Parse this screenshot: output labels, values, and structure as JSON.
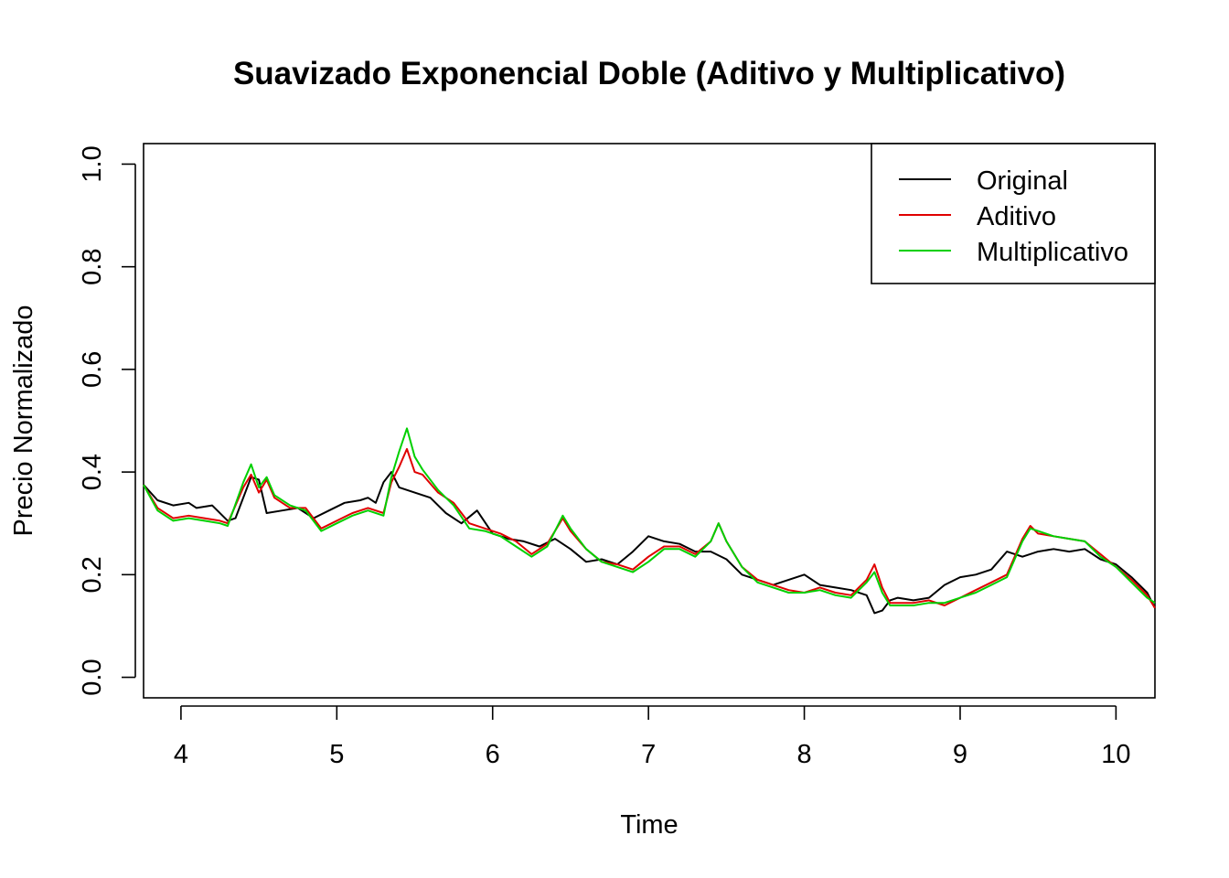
{
  "chart_data": {
    "type": "line",
    "title": "Suavizado Exponencial Doble (Aditivo y Multiplicativo)",
    "xlabel": "Time",
    "ylabel": "Precio Normalizado",
    "xlim": [
      3.76,
      10.25
    ],
    "ylim": [
      -0.04,
      1.04
    ],
    "x_ticks": [
      "4",
      "5",
      "6",
      "7",
      "8",
      "9",
      "10"
    ],
    "y_ticks": [
      "0.0",
      "0.2",
      "0.4",
      "0.6",
      "0.8",
      "1.0"
    ],
    "grid": false,
    "legend": {
      "position": "top-right",
      "entries": [
        "Original",
        "Aditivo",
        "Multiplicativo"
      ]
    },
    "colors": {
      "Original": "#000000",
      "Aditivo": "#e00000",
      "Multiplicativo": "#00d000"
    },
    "series": [
      {
        "name": "Original",
        "color": "#000000",
        "x": [
          3.76,
          3.85,
          3.95,
          4.05,
          4.1,
          4.2,
          4.3,
          4.35,
          4.45,
          4.5,
          4.55,
          4.65,
          4.75,
          4.85,
          4.95,
          5.05,
          5.15,
          5.2,
          5.25,
          5.3,
          5.35,
          5.4,
          5.5,
          5.6,
          5.7,
          5.8,
          5.9,
          6.0,
          6.1,
          6.2,
          6.3,
          6.4,
          6.5,
          6.6,
          6.7,
          6.8,
          6.9,
          7.0,
          7.1,
          7.2,
          7.3,
          7.4,
          7.5,
          7.6,
          7.7,
          7.8,
          7.9,
          8.0,
          8.1,
          8.2,
          8.3,
          8.4,
          8.45,
          8.5,
          8.55,
          8.6,
          8.7,
          8.8,
          8.9,
          9.0,
          9.1,
          9.2,
          9.3,
          9.4,
          9.5,
          9.6,
          9.7,
          9.8,
          9.9,
          10.0,
          10.1,
          10.2,
          10.25
        ],
        "y": [
          0.375,
          0.345,
          0.335,
          0.34,
          0.33,
          0.335,
          0.305,
          0.31,
          0.39,
          0.385,
          0.32,
          0.325,
          0.33,
          0.31,
          0.325,
          0.34,
          0.345,
          0.35,
          0.34,
          0.38,
          0.4,
          0.37,
          0.36,
          0.35,
          0.32,
          0.3,
          0.325,
          0.28,
          0.27,
          0.265,
          0.255,
          0.27,
          0.25,
          0.225,
          0.23,
          0.22,
          0.245,
          0.275,
          0.265,
          0.26,
          0.245,
          0.245,
          0.23,
          0.2,
          0.19,
          0.18,
          0.19,
          0.2,
          0.18,
          0.175,
          0.17,
          0.16,
          0.125,
          0.13,
          0.15,
          0.155,
          0.15,
          0.155,
          0.18,
          0.195,
          0.2,
          0.21,
          0.245,
          0.235,
          0.245,
          0.25,
          0.245,
          0.25,
          0.23,
          0.22,
          0.195,
          0.165,
          0.135
        ]
      },
      {
        "name": "Aditivo",
        "color": "#e00000",
        "x": [
          3.76,
          3.85,
          3.95,
          4.05,
          4.15,
          4.25,
          4.3,
          4.4,
          4.45,
          4.5,
          4.55,
          4.6,
          4.7,
          4.8,
          4.9,
          5.0,
          5.1,
          5.2,
          5.3,
          5.35,
          5.4,
          5.45,
          5.5,
          5.55,
          5.65,
          5.75,
          5.85,
          5.95,
          6.05,
          6.15,
          6.25,
          6.35,
          6.45,
          6.5,
          6.6,
          6.7,
          6.8,
          6.9,
          7.0,
          7.1,
          7.2,
          7.3,
          7.4,
          7.45,
          7.5,
          7.6,
          7.7,
          7.8,
          7.9,
          8.0,
          8.1,
          8.2,
          8.3,
          8.4,
          8.45,
          8.5,
          8.55,
          8.6,
          8.7,
          8.8,
          8.9,
          9.0,
          9.1,
          9.2,
          9.3,
          9.4,
          9.45,
          9.5,
          9.6,
          9.7,
          9.8,
          9.9,
          10.0,
          10.1,
          10.2,
          10.25
        ],
        "y": [
          0.375,
          0.33,
          0.31,
          0.315,
          0.31,
          0.305,
          0.3,
          0.37,
          0.395,
          0.36,
          0.385,
          0.35,
          0.33,
          0.33,
          0.29,
          0.305,
          0.32,
          0.33,
          0.32,
          0.38,
          0.41,
          0.445,
          0.4,
          0.395,
          0.36,
          0.34,
          0.3,
          0.29,
          0.28,
          0.265,
          0.24,
          0.26,
          0.31,
          0.285,
          0.25,
          0.225,
          0.22,
          0.21,
          0.235,
          0.255,
          0.255,
          0.24,
          0.265,
          0.3,
          0.265,
          0.215,
          0.19,
          0.18,
          0.17,
          0.165,
          0.175,
          0.165,
          0.16,
          0.19,
          0.22,
          0.175,
          0.145,
          0.145,
          0.145,
          0.15,
          0.14,
          0.155,
          0.17,
          0.185,
          0.2,
          0.27,
          0.295,
          0.28,
          0.275,
          0.27,
          0.265,
          0.24,
          0.215,
          0.19,
          0.16,
          0.135
        ]
      },
      {
        "name": "Multiplicativo",
        "color": "#00d000",
        "x": [
          3.76,
          3.85,
          3.95,
          4.05,
          4.15,
          4.25,
          4.3,
          4.4,
          4.45,
          4.5,
          4.55,
          4.6,
          4.7,
          4.8,
          4.9,
          5.0,
          5.1,
          5.2,
          5.3,
          5.35,
          5.4,
          5.45,
          5.5,
          5.55,
          5.65,
          5.75,
          5.85,
          5.95,
          6.05,
          6.15,
          6.25,
          6.35,
          6.45,
          6.5,
          6.6,
          6.7,
          6.8,
          6.9,
          7.0,
          7.1,
          7.2,
          7.3,
          7.4,
          7.45,
          7.5,
          7.6,
          7.7,
          7.8,
          7.9,
          8.0,
          8.1,
          8.2,
          8.3,
          8.4,
          8.45,
          8.5,
          8.55,
          8.6,
          8.7,
          8.8,
          8.9,
          9.0,
          9.1,
          9.2,
          9.3,
          9.4,
          9.45,
          9.5,
          9.6,
          9.7,
          9.8,
          9.9,
          10.0,
          10.1,
          10.2,
          10.25
        ],
        "y": [
          0.375,
          0.325,
          0.305,
          0.31,
          0.305,
          0.3,
          0.295,
          0.38,
          0.415,
          0.37,
          0.39,
          0.355,
          0.335,
          0.325,
          0.285,
          0.3,
          0.315,
          0.325,
          0.315,
          0.39,
          0.44,
          0.485,
          0.43,
          0.405,
          0.365,
          0.335,
          0.29,
          0.285,
          0.275,
          0.255,
          0.235,
          0.255,
          0.315,
          0.29,
          0.25,
          0.225,
          0.215,
          0.205,
          0.225,
          0.25,
          0.25,
          0.235,
          0.265,
          0.3,
          0.265,
          0.215,
          0.185,
          0.175,
          0.165,
          0.165,
          0.17,
          0.16,
          0.155,
          0.185,
          0.205,
          0.165,
          0.14,
          0.14,
          0.14,
          0.145,
          0.145,
          0.155,
          0.165,
          0.18,
          0.195,
          0.265,
          0.29,
          0.285,
          0.275,
          0.27,
          0.265,
          0.235,
          0.215,
          0.185,
          0.155,
          0.145
        ]
      }
    ]
  }
}
